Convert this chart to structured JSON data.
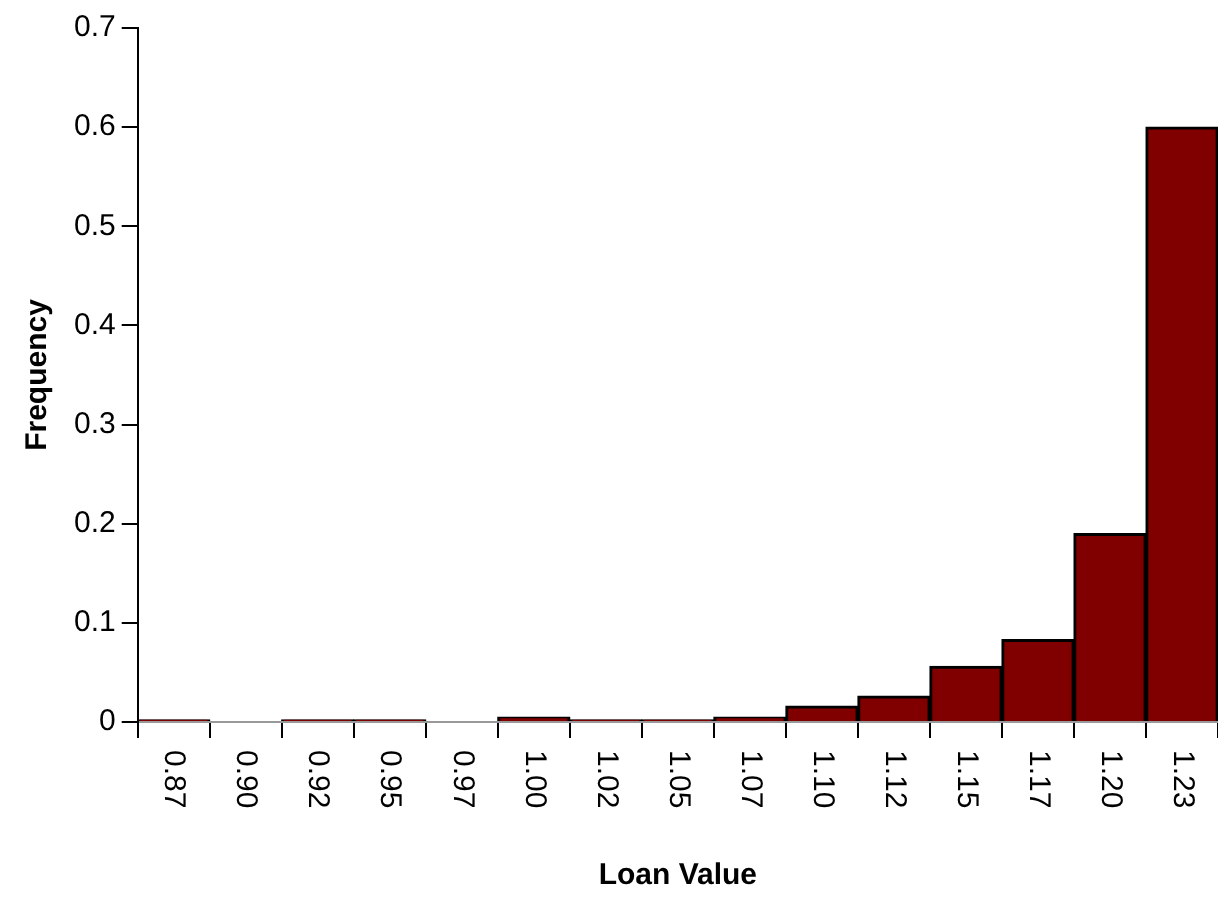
{
  "chart_data": {
    "type": "bar",
    "xlabel": "Loan Value",
    "ylabel": "Frequency",
    "categories": [
      "0.87",
      "0.90",
      "0.92",
      "0.95",
      "0.97",
      "1.00",
      "1.02",
      "1.05",
      "1.07",
      "1.10",
      "1.12",
      "1.15",
      "1.17",
      "1.20",
      "1.23"
    ],
    "values": [
      0.002,
      0,
      0.002,
      0.002,
      0,
      0.005,
      0.002,
      0.002,
      0.005,
      0.016,
      0.026,
      0.056,
      0.083,
      0.19,
      0.6
    ],
    "color": "#800000",
    "ylim": [
      0,
      0.7
    ],
    "yticks": [
      0,
      0.1,
      0.2,
      0.3,
      0.4,
      0.5,
      0.6,
      0.7
    ],
    "grid": false,
    "legend": false
  }
}
